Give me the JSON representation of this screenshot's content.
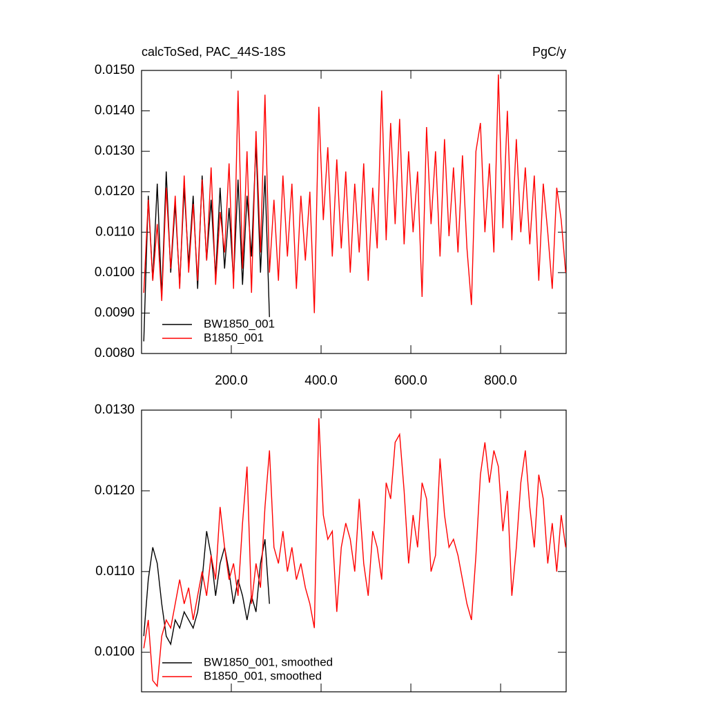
{
  "chart_data": [
    {
      "type": "line",
      "title": "calcToSed, PAC_44S-18S",
      "subtitle": "PgC/y",
      "x": [
        5,
        15,
        25,
        35,
        45,
        55,
        65,
        75,
        85,
        95,
        105,
        115,
        125,
        135,
        145,
        155,
        165,
        175,
        185,
        195,
        205,
        215,
        225,
        235,
        245,
        255,
        265,
        275,
        285,
        295,
        305,
        315,
        325,
        335,
        345,
        355,
        365,
        375,
        385,
        395,
        405,
        415,
        425,
        435,
        445,
        455,
        465,
        475,
        485,
        495,
        505,
        515,
        525,
        535,
        545,
        555,
        565,
        575,
        585,
        595,
        605,
        615,
        625,
        635,
        645,
        655,
        665,
        675,
        685,
        695,
        705,
        715,
        725,
        735,
        745,
        755,
        765,
        775,
        785,
        795,
        805,
        815,
        825,
        835,
        845,
        855,
        865,
        875,
        885,
        895,
        905,
        915,
        925,
        935,
        945
      ],
      "series": [
        {
          "name": "BW1850_001",
          "color": "#000000",
          "values": [
            0.0083,
            0.0119,
            0.0098,
            0.0122,
            0.0094,
            0.0125,
            0.01,
            0.0117,
            0.0097,
            0.0121,
            0.0102,
            0.0119,
            0.0096,
            0.0124,
            0.0103,
            0.0118,
            0.0099,
            0.0121,
            0.0101,
            0.0116,
            0.0098,
            0.0123,
            0.0097,
            0.0119,
            0.0104,
            0.0132,
            0.01,
            0.0124,
            0.0089,
            null,
            null,
            null,
            null,
            null,
            null,
            null,
            null,
            null,
            null,
            null,
            null,
            null,
            null,
            null,
            null,
            null,
            null,
            null,
            null,
            null,
            null,
            null,
            null,
            null,
            null,
            null,
            null,
            null,
            null,
            null,
            null,
            null,
            null,
            null,
            null,
            null,
            null,
            null,
            null,
            null,
            null,
            null,
            null,
            null,
            null,
            null,
            null,
            null,
            null,
            null,
            null,
            null,
            null,
            null,
            null,
            null,
            null,
            null,
            null,
            null,
            null,
            null,
            null,
            null,
            null
          ]
        },
        {
          "name": "B1850_001",
          "color": "#ff0000",
          "values": [
            0.0095,
            0.0118,
            0.0098,
            0.0112,
            0.0093,
            0.0121,
            0.0101,
            0.0119,
            0.0096,
            0.0124,
            0.01,
            0.0117,
            0.0098,
            0.0123,
            0.0103,
            0.0126,
            0.0097,
            0.0115,
            0.0105,
            0.0127,
            0.0096,
            0.0145,
            0.0101,
            0.013,
            0.0095,
            0.0135,
            0.0105,
            0.0144,
            0.01,
            0.0118,
            0.0098,
            0.0124,
            0.0104,
            0.0122,
            0.0096,
            0.0119,
            0.0103,
            0.012,
            0.009,
            0.0141,
            0.0113,
            0.0131,
            0.0104,
            0.0128,
            0.0106,
            0.0125,
            0.01,
            0.0122,
            0.0105,
            0.0127,
            0.0098,
            0.0121,
            0.0106,
            0.0145,
            0.0108,
            0.0137,
            0.0112,
            0.0138,
            0.0107,
            0.013,
            0.011,
            0.0125,
            0.0094,
            0.0136,
            0.0112,
            0.013,
            0.0104,
            0.0133,
            0.0109,
            0.0126,
            0.0105,
            0.0129,
            0.0106,
            0.0092,
            0.013,
            0.0137,
            0.011,
            0.0127,
            0.0105,
            0.0149,
            0.0111,
            0.014,
            0.0108,
            0.0133,
            0.011,
            0.0126,
            0.0107,
            0.0124,
            0.0098,
            0.0122,
            0.011,
            0.0096,
            0.0121,
            0.0113,
            0.01
          ]
        }
      ],
      "xlim": [
        0,
        946
      ],
      "xticks": [
        {
          "value": 200,
          "label": "200.0"
        },
        {
          "value": 400,
          "label": "400.0"
        },
        {
          "value": 600,
          "label": "600.0"
        },
        {
          "value": 800,
          "label": "800.0"
        }
      ],
      "ylim": [
        0.008,
        0.015
      ],
      "yticks": [
        {
          "value": 0.008,
          "label": "0.0080"
        },
        {
          "value": 0.009,
          "label": "0.0090"
        },
        {
          "value": 0.01,
          "label": "0.0100"
        },
        {
          "value": 0.011,
          "label": "0.0110"
        },
        {
          "value": 0.012,
          "label": "0.0120"
        },
        {
          "value": 0.013,
          "label": "0.0130"
        },
        {
          "value": 0.014,
          "label": "0.0140"
        },
        {
          "value": 0.015,
          "label": "0.0150"
        }
      ],
      "legend": "lower-left"
    },
    {
      "type": "line",
      "x": [
        5,
        15,
        25,
        35,
        45,
        55,
        65,
        75,
        85,
        95,
        105,
        115,
        125,
        135,
        145,
        155,
        165,
        175,
        185,
        195,
        205,
        215,
        225,
        235,
        245,
        255,
        265,
        275,
        285,
        295,
        305,
        315,
        325,
        335,
        345,
        355,
        365,
        375,
        385,
        395,
        405,
        415,
        425,
        435,
        445,
        455,
        465,
        475,
        485,
        495,
        505,
        515,
        525,
        535,
        545,
        555,
        565,
        575,
        585,
        595,
        605,
        615,
        625,
        635,
        645,
        655,
        665,
        675,
        685,
        695,
        705,
        715,
        725,
        735,
        745,
        755,
        765,
        775,
        785,
        795,
        805,
        815,
        825,
        835,
        845,
        855,
        865,
        875,
        885,
        895,
        905,
        915,
        925,
        935,
        945
      ],
      "series": [
        {
          "name": "BW1850_001, smoothed",
          "color": "#000000",
          "values": [
            0.0102,
            0.0109,
            0.0113,
            0.0111,
            0.0106,
            0.0102,
            0.0101,
            0.0104,
            0.0103,
            0.0105,
            0.0104,
            0.0103,
            0.0105,
            0.0109,
            0.0115,
            0.0112,
            0.0107,
            0.0111,
            0.0113,
            0.011,
            0.0106,
            0.0109,
            0.0107,
            0.0104,
            0.0107,
            0.0105,
            0.0111,
            0.0114,
            0.0106,
            null,
            null,
            null,
            null,
            null,
            null,
            null,
            null,
            null,
            null,
            null,
            null,
            null,
            null,
            null,
            null,
            null,
            null,
            null,
            null,
            null,
            null,
            null,
            null,
            null,
            null,
            null,
            null,
            null,
            null,
            null,
            null,
            null,
            null,
            null,
            null,
            null,
            null,
            null,
            null,
            null,
            null,
            null,
            null,
            null,
            null,
            null,
            null,
            null,
            null,
            null,
            null,
            null,
            null,
            null,
            null,
            null,
            null,
            null,
            null,
            null,
            null,
            null,
            null,
            null,
            null
          ]
        },
        {
          "name": "B1850_001, smoothed",
          "color": "#ff0000",
          "values": [
            0.01005,
            0.0104,
            0.00965,
            0.00958,
            0.0102,
            0.0104,
            0.0103,
            0.0106,
            0.0109,
            0.0106,
            0.0108,
            0.0104,
            0.0107,
            0.011,
            0.0107,
            0.0112,
            0.0109,
            0.0118,
            0.0113,
            0.0109,
            0.0111,
            0.0107,
            0.0116,
            0.0123,
            0.0106,
            0.0111,
            0.0108,
            0.0118,
            0.0125,
            0.0113,
            0.0111,
            0.0115,
            0.011,
            0.0113,
            0.0109,
            0.0111,
            0.0108,
            0.0106,
            0.0103,
            0.0129,
            0.0117,
            0.0114,
            0.0115,
            0.0105,
            0.0113,
            0.0116,
            0.0114,
            0.011,
            0.0119,
            0.0111,
            0.0107,
            0.0115,
            0.0113,
            0.0109,
            0.0121,
            0.0119,
            0.0126,
            0.0127,
            0.012,
            0.0111,
            0.0117,
            0.0113,
            0.0121,
            0.0119,
            0.011,
            0.0112,
            0.0124,
            0.0117,
            0.0113,
            0.0114,
            0.0112,
            0.0109,
            0.0106,
            0.0104,
            0.0112,
            0.0122,
            0.0126,
            0.0121,
            0.0125,
            0.0123,
            0.0115,
            0.012,
            0.0107,
            0.0113,
            0.0121,
            0.0125,
            0.0118,
            0.0113,
            0.0122,
            0.0119,
            0.0111,
            0.0116,
            0.011,
            0.0117,
            0.0113
          ]
        }
      ],
      "xlim": [
        0,
        946
      ],
      "xticks": [
        200,
        400,
        600,
        800
      ],
      "ylim": [
        0.00951,
        0.013
      ],
      "yticks": [
        {
          "value": 0.01,
          "label": "0.0100"
        },
        {
          "value": 0.011,
          "label": "0.0110"
        },
        {
          "value": 0.012,
          "label": "0.0120"
        },
        {
          "value": 0.013,
          "label": "0.0130"
        }
      ],
      "legend": "lower-left"
    }
  ]
}
